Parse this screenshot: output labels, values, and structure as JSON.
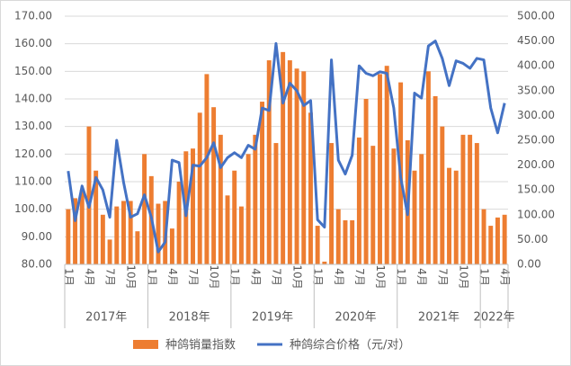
{
  "chart_data": {
    "type": "bar-line",
    "categories": [
      "1月",
      null,
      null,
      "4月",
      null,
      null,
      "7月",
      null,
      null,
      "10月",
      null,
      null,
      "1月",
      null,
      null,
      "4月",
      null,
      null,
      "7月",
      null,
      null,
      "10月",
      null,
      null,
      "1月",
      null,
      null,
      "4月",
      null,
      null,
      "7月",
      null,
      null,
      "10月",
      null,
      null,
      "1月",
      null,
      null,
      "4月",
      null,
      null,
      "7月",
      null,
      null,
      "10月",
      null,
      null,
      "1月",
      null,
      null,
      "4月",
      null,
      null,
      "7月",
      null,
      null,
      "10月",
      null,
      null,
      "1月",
      null,
      null,
      "4月"
    ],
    "groups": [
      "2017年",
      "2018年",
      "2019年",
      "2020年",
      "2021年",
      "2022年"
    ],
    "series": [
      {
        "name": "种鸽销量指数",
        "type": "bar",
        "color": "#ED7D31",
        "values": [
          100,
          104,
          107,
          130,
          114,
          98,
          89,
          101,
          103,
          103,
          92,
          120,
          112,
          102,
          103,
          93,
          110,
          121,
          122,
          135,
          149,
          137,
          127,
          105,
          114,
          101,
          120,
          127,
          139,
          154,
          124,
          157,
          154,
          151,
          150,
          135,
          94,
          81,
          124,
          100,
          96,
          96,
          126,
          140,
          123,
          149,
          152,
          122,
          146,
          125,
          114,
          120,
          150,
          141,
          130,
          115,
          114,
          127,
          127,
          124,
          100,
          94,
          97,
          98
        ]
      },
      {
        "name": "种鸽综合价格（元/对）",
        "type": "line",
        "axis": "y2",
        "color": "#4472C4",
        "values": [
          188,
          88,
          158,
          115,
          175,
          150,
          95,
          250,
          165,
          95,
          102,
          140,
          95,
          25,
          45,
          210,
          205,
          98,
          200,
          198,
          215,
          245,
          195,
          215,
          225,
          215,
          240,
          232,
          315,
          310,
          445,
          325,
          365,
          350,
          320,
          330,
          90,
          75,
          412,
          210,
          182,
          220,
          400,
          385,
          380,
          388,
          385,
          315,
          175,
          100,
          345,
          335,
          440,
          450,
          415,
          360,
          410,
          405,
          395,
          415,
          412,
          315,
          265,
          325
        ]
      }
    ],
    "ylim": [
      80,
      170
    ],
    "yticks": [
      {
        "value": 80,
        "label": "80.00"
      },
      {
        "value": 90,
        "label": "90.00"
      },
      {
        "value": 100,
        "label": "100.00"
      },
      {
        "value": 110,
        "label": "110.00"
      },
      {
        "value": 120,
        "label": "120.00"
      },
      {
        "value": 130,
        "label": "130.00"
      },
      {
        "value": 140,
        "label": "140.00"
      },
      {
        "value": 150,
        "label": "150.00"
      },
      {
        "value": 160,
        "label": "160.00"
      },
      {
        "value": 170,
        "label": "170.00"
      }
    ],
    "y2lim": [
      0,
      500
    ],
    "y2ticks": [
      {
        "value": 0,
        "label": "0.00"
      },
      {
        "value": 50,
        "label": "50.00"
      },
      {
        "value": 100,
        "label": "100.00"
      },
      {
        "value": 150,
        "label": "150.00"
      },
      {
        "value": 200,
        "label": "200.00"
      },
      {
        "value": 250,
        "label": "250.00"
      },
      {
        "value": 300,
        "label": "300.00"
      },
      {
        "value": 350,
        "label": "350.00"
      },
      {
        "value": 400,
        "label": "400.00"
      },
      {
        "value": 450,
        "label": "450.00"
      },
      {
        "value": 500,
        "label": "500.00"
      }
    ],
    "grid": true,
    "legend": "bottom"
  }
}
